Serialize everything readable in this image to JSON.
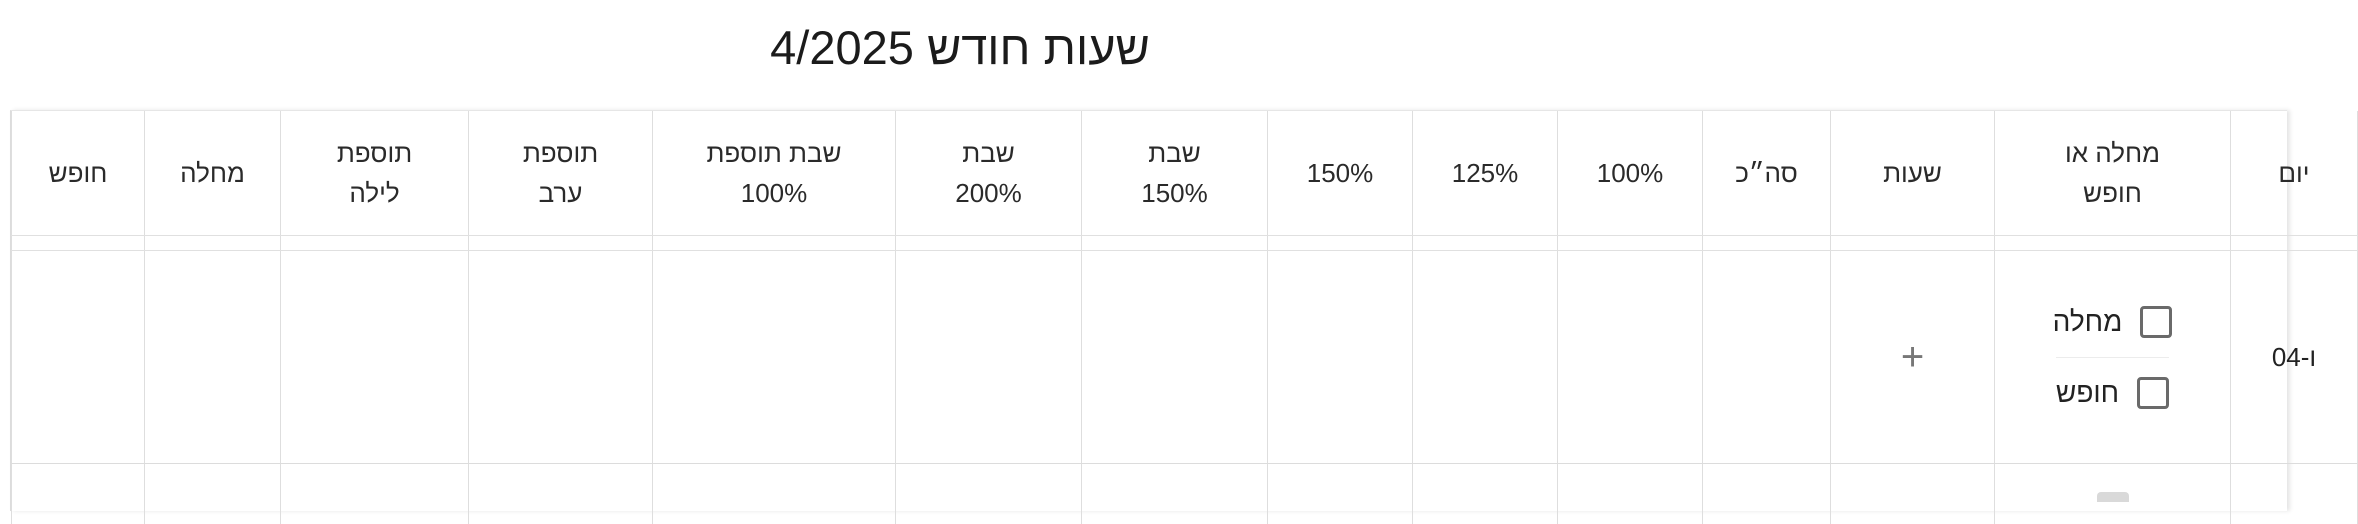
{
  "title": "שעות חודש 4/2025",
  "columns": [
    [
      "יום"
    ],
    [
      "מחלה או",
      "חופש"
    ],
    [
      "שעות"
    ],
    [
      "סה״כ"
    ],
    [
      "100%"
    ],
    [
      "125%"
    ],
    [
      "150%"
    ],
    [
      "שבת",
      "150%"
    ],
    [
      "שבת",
      "200%"
    ],
    [
      "שבת תוספת",
      "100%"
    ],
    [
      "תוספת",
      "ערב"
    ],
    [
      "תוספת",
      "לילה"
    ],
    [
      "מחלה"
    ],
    [
      "חופש"
    ]
  ],
  "rows": [
    {
      "day": "ו-04",
      "sick_label": "מחלה",
      "vacation_label": "חופש",
      "add_icon": "plus-icon"
    }
  ]
}
